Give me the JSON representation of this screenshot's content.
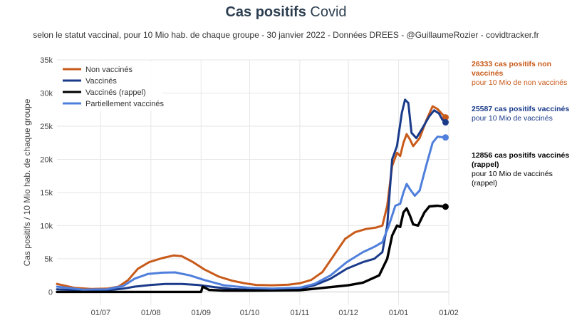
{
  "header": {
    "title_bold": "Cas positifs",
    "title_rest": "Covid",
    "subtitle": "selon le statut vaccinal, pour 10 Mio hab. de chaque groupe - 30 janvier 2022 - Données DREES - @GuillaumeRozier - covidtracker.fr"
  },
  "annotations": [
    {
      "bold": "26333 cas positifs non vaccinés",
      "rest": "pour 10 Mio de non vaccinés",
      "color": "#c85a1a"
    },
    {
      "bold": "25587 cas positifs vaccinés",
      "rest": "pour 10 Mio de vaccinés",
      "color": "#1a3a8a"
    },
    {
      "bold": "12856 cas positifs vaccinés (rappel)",
      "rest": "pour 10 Mio de vaccinés (rappel)",
      "color": "#000000"
    }
  ],
  "chart_data": {
    "type": "line",
    "ylabel": "Cas positifs / 10 Mio hab. de chaque groupe",
    "xlabel": "",
    "ylim": [
      -2000,
      35000
    ],
    "yticks": [
      {
        "v": 0,
        "label": "0"
      },
      {
        "v": 5000,
        "label": "5k"
      },
      {
        "v": 10000,
        "label": "10k"
      },
      {
        "v": 15000,
        "label": "15k"
      },
      {
        "v": 20000,
        "label": "20k"
      },
      {
        "v": 25000,
        "label": "25k"
      },
      {
        "v": 30000,
        "label": "30k"
      },
      {
        "v": 35000,
        "label": "35k"
      }
    ],
    "xrange": [
      "2021-06-04",
      "2022-02-01"
    ],
    "xticks": [
      {
        "date": "2021-07-01",
        "label": "01/07"
      },
      {
        "date": "2021-08-01",
        "label": "01/08"
      },
      {
        "date": "2021-09-01",
        "label": "01/09"
      },
      {
        "date": "2021-10-01",
        "label": "01/10"
      },
      {
        "date": "2021-11-01",
        "label": "01/11"
      },
      {
        "date": "2021-12-01",
        "label": "01/12"
      },
      {
        "date": "2022-01-01",
        "label": "01/01"
      },
      {
        "date": "2022-02-01",
        "label": "01/02"
      }
    ],
    "grid": true,
    "legend_position": "top-left",
    "series": [
      {
        "name": "Non vaccinés",
        "color": "#c85a1a",
        "last": 26333,
        "points": [
          [
            "2021-06-04",
            1200
          ],
          [
            "2021-06-15",
            600
          ],
          [
            "2021-06-25",
            450
          ],
          [
            "2021-07-05",
            500
          ],
          [
            "2021-07-12",
            800
          ],
          [
            "2021-07-18",
            1800
          ],
          [
            "2021-07-24",
            3500
          ],
          [
            "2021-07-31",
            4500
          ],
          [
            "2021-08-08",
            5100
          ],
          [
            "2021-08-15",
            5500
          ],
          [
            "2021-08-20",
            5400
          ],
          [
            "2021-08-27",
            4500
          ],
          [
            "2021-09-03",
            3400
          ],
          [
            "2021-09-12",
            2300
          ],
          [
            "2021-09-20",
            1700
          ],
          [
            "2021-09-28",
            1300
          ],
          [
            "2021-10-05",
            1050
          ],
          [
            "2021-10-15",
            1000
          ],
          [
            "2021-10-25",
            1100
          ],
          [
            "2021-11-01",
            1300
          ],
          [
            "2021-11-08",
            1800
          ],
          [
            "2021-11-15",
            3000
          ],
          [
            "2021-11-22",
            5500
          ],
          [
            "2021-11-29",
            8000
          ],
          [
            "2021-12-05",
            9000
          ],
          [
            "2021-12-12",
            9500
          ],
          [
            "2021-12-18",
            9700
          ],
          [
            "2021-12-22",
            10000
          ],
          [
            "2021-12-25",
            13000
          ],
          [
            "2021-12-28",
            19000
          ],
          [
            "2021-12-31",
            21000
          ],
          [
            "2022-01-02",
            20500
          ],
          [
            "2022-01-04",
            22500
          ],
          [
            "2022-01-06",
            23800
          ],
          [
            "2022-01-08",
            23000
          ],
          [
            "2022-01-10",
            22000
          ],
          [
            "2022-01-14",
            23200
          ],
          [
            "2022-01-18",
            25800
          ],
          [
            "2022-01-22",
            28000
          ],
          [
            "2022-01-25",
            27600
          ],
          [
            "2022-01-28",
            26800
          ],
          [
            "2022-01-30",
            26333
          ]
        ]
      },
      {
        "name": "Vaccinés",
        "color": "#1a3a8a",
        "last": 25587,
        "points": [
          [
            "2021-06-04",
            400
          ],
          [
            "2021-06-20",
            200
          ],
          [
            "2021-07-05",
            250
          ],
          [
            "2021-07-15",
            500
          ],
          [
            "2021-07-22",
            800
          ],
          [
            "2021-08-01",
            1050
          ],
          [
            "2021-08-10",
            1200
          ],
          [
            "2021-08-20",
            1200
          ],
          [
            "2021-08-30",
            1050
          ],
          [
            "2021-09-10",
            700
          ],
          [
            "2021-09-20",
            450
          ],
          [
            "2021-10-01",
            350
          ],
          [
            "2021-10-15",
            350
          ],
          [
            "2021-11-01",
            450
          ],
          [
            "2021-11-10",
            1000
          ],
          [
            "2021-11-20",
            2000
          ],
          [
            "2021-11-30",
            3500
          ],
          [
            "2021-12-10",
            4500
          ],
          [
            "2021-12-17",
            5000
          ],
          [
            "2021-12-22",
            6000
          ],
          [
            "2021-12-25",
            10000
          ],
          [
            "2021-12-28",
            20000
          ],
          [
            "2021-12-31",
            22000
          ],
          [
            "2022-01-03",
            27000
          ],
          [
            "2022-01-05",
            29000
          ],
          [
            "2022-01-07",
            28500
          ],
          [
            "2022-01-09",
            24000
          ],
          [
            "2022-01-12",
            23200
          ],
          [
            "2022-01-16",
            24800
          ],
          [
            "2022-01-20",
            26500
          ],
          [
            "2022-01-23",
            27400
          ],
          [
            "2022-01-26",
            26900
          ],
          [
            "2022-01-28",
            26000
          ],
          [
            "2022-01-30",
            25587
          ]
        ]
      },
      {
        "name": "Vaccinés (rappel)",
        "color": "#000000",
        "last": 12856,
        "points": [
          [
            "2021-06-04",
            0
          ],
          [
            "2021-09-01",
            0
          ],
          [
            "2021-09-02",
            800
          ],
          [
            "2021-09-06",
            300
          ],
          [
            "2021-09-15",
            200
          ],
          [
            "2021-10-01",
            200
          ],
          [
            "2021-11-01",
            250
          ],
          [
            "2021-11-15",
            600
          ],
          [
            "2021-12-01",
            1000
          ],
          [
            "2021-12-10",
            1400
          ],
          [
            "2021-12-20",
            2500
          ],
          [
            "2021-12-25",
            5000
          ],
          [
            "2021-12-28",
            8500
          ],
          [
            "2021-12-31",
            10000
          ],
          [
            "2022-01-02",
            9800
          ],
          [
            "2022-01-04",
            12000
          ],
          [
            "2022-01-06",
            12600
          ],
          [
            "2022-01-08",
            11500
          ],
          [
            "2022-01-10",
            10200
          ],
          [
            "2022-01-13",
            10000
          ],
          [
            "2022-01-17",
            12000
          ],
          [
            "2022-01-20",
            12900
          ],
          [
            "2022-01-25",
            13000
          ],
          [
            "2022-01-30",
            12856
          ]
        ]
      },
      {
        "name": "Partiellement vaccinés",
        "color": "#4f7fdc",
        "last": 23300,
        "points": [
          [
            "2021-06-04",
            800
          ],
          [
            "2021-06-20",
            350
          ],
          [
            "2021-07-05",
            400
          ],
          [
            "2021-07-15",
            900
          ],
          [
            "2021-07-22",
            2000
          ],
          [
            "2021-07-30",
            2700
          ],
          [
            "2021-08-08",
            2900
          ],
          [
            "2021-08-16",
            2950
          ],
          [
            "2021-08-25",
            2500
          ],
          [
            "2021-09-03",
            1800
          ],
          [
            "2021-09-15",
            1000
          ],
          [
            "2021-10-01",
            600
          ],
          [
            "2021-10-15",
            500
          ],
          [
            "2021-11-01",
            650
          ],
          [
            "2021-11-10",
            1200
          ],
          [
            "2021-11-20",
            2500
          ],
          [
            "2021-11-30",
            4500
          ],
          [
            "2021-12-10",
            6000
          ],
          [
            "2021-12-17",
            6800
          ],
          [
            "2021-12-22",
            7500
          ],
          [
            "2021-12-26",
            10000
          ],
          [
            "2021-12-30",
            13000
          ],
          [
            "2022-01-02",
            13300
          ],
          [
            "2022-01-04",
            15000
          ],
          [
            "2022-01-06",
            16300
          ],
          [
            "2022-01-08",
            15500
          ],
          [
            "2022-01-11",
            14500
          ],
          [
            "2022-01-14",
            15300
          ],
          [
            "2022-01-18",
            19000
          ],
          [
            "2022-01-22",
            22500
          ],
          [
            "2022-01-25",
            23400
          ],
          [
            "2022-01-30",
            23300
          ]
        ]
      }
    ]
  }
}
